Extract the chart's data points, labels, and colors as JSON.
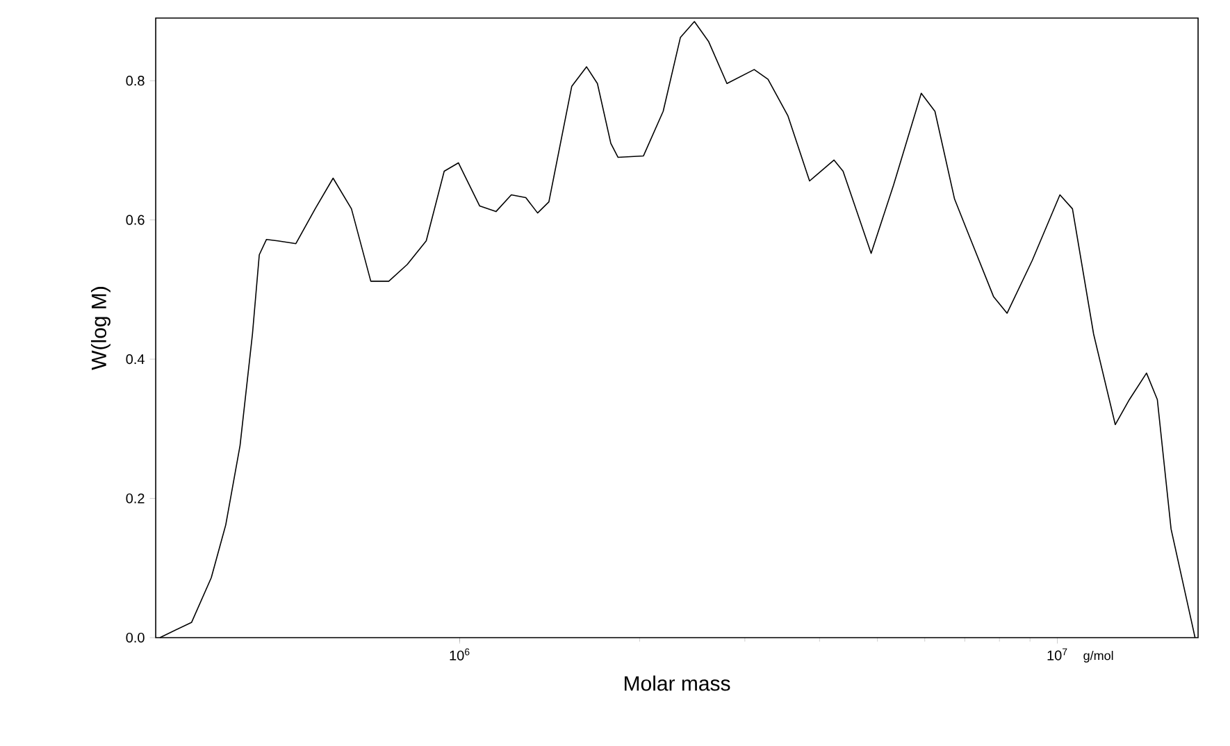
{
  "chart_data": {
    "type": "line",
    "xlabel": "Molar mass",
    "ylabel": "W(log M)",
    "annotations": [
      "g/mol"
    ],
    "log": "x",
    "color": "#000000",
    "marker": "none",
    "line_style": "solid",
    "xlim": [
      310000,
      17200000
    ],
    "ylim": [
      0,
      0.89
    ],
    "xticks": [
      {
        "value": 1000000,
        "label": "10$^{6}$"
      },
      {
        "value": 10000000,
        "label": "10$^{7}$"
      }
    ],
    "yticks": [
      {
        "value": 0,
        "label": "0.0"
      },
      {
        "value": 0.2,
        "label": "0.2"
      },
      {
        "value": 0.4,
        "label": "0.4"
      },
      {
        "value": 0.6,
        "label": "0.6"
      },
      {
        "value": 0.8,
        "label": "0.8"
      }
    ],
    "x": [
      315000,
      356000,
      384000,
      406000,
      429000,
      450000,
      462000,
      475000,
      496000,
      532000,
      573000,
      614000,
      659000,
      710000,
      761000,
      817000,
      879000,
      942000,
      995000,
      1080000,
      1150000,
      1220000,
      1290000,
      1350000,
      1410000,
      1540000,
      1630000,
      1700000,
      1790000,
      1840000,
      2030000,
      2190000,
      2340000,
      2470000,
      2610000,
      2800000,
      3110000,
      3280000,
      3540000,
      3850000,
      4230000,
      4380000,
      4880000,
      5320000,
      5920000,
      6240000,
      6730000,
      7100000,
      7820000,
      8240000,
      9080000,
      10100000,
      10600000,
      11500000,
      12500000,
      13200000,
      14100000,
      14700000,
      15500000,
      16800000,
      17000000
    ],
    "values": [
      0,
      0.022,
      0.086,
      0.162,
      0.276,
      0.436,
      0.55,
      0.572,
      0.57,
      0.566,
      0.616,
      0.66,
      0.616,
      0.512,
      0.512,
      0.536,
      0.57,
      0.67,
      0.682,
      0.62,
      0.612,
      0.636,
      0.632,
      0.61,
      0.626,
      0.792,
      0.82,
      0.796,
      0.71,
      0.69,
      0.692,
      0.756,
      0.862,
      0.885,
      0.856,
      0.796,
      0.816,
      0.802,
      0.75,
      0.656,
      0.686,
      0.67,
      0.552,
      0.65,
      0.782,
      0.756,
      0.63,
      0.58,
      0.49,
      0.466,
      0.542,
      0.636,
      0.616,
      0.436,
      0.306,
      0.342,
      0.38,
      0.342,
      0.156,
      0.02,
      0
    ]
  }
}
